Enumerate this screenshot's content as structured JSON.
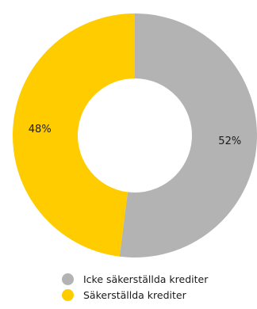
{
  "chart_data": {
    "type": "pie",
    "variant": "donut",
    "title": "",
    "slices": [
      {
        "label": "Icke säkerställda krediter",
        "value": 52,
        "value_label": "52%",
        "color": "#b3b3b3"
      },
      {
        "label": "Säkerställda krediter",
        "value": 48,
        "value_label": "48%",
        "color": "#ffcc00"
      }
    ],
    "start_angle": "top",
    "direction": "clockwise",
    "legend_position": "bottom"
  }
}
